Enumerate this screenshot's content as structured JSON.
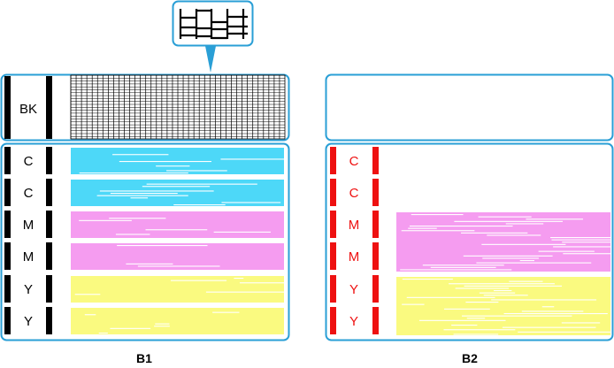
{
  "colors": {
    "border": "#2a9fd6",
    "cyan": "#4dd8f8",
    "magenta": "#f59cf0",
    "yellow": "#fafa80",
    "black": "#000000",
    "red": "#ee1111"
  },
  "b1": {
    "caption": "B1",
    "top_label": "BK",
    "rows": [
      "C",
      "C",
      "M",
      "M",
      "Y",
      "Y"
    ]
  },
  "b2": {
    "caption": "B2",
    "rows": [
      "C",
      "C",
      "M",
      "M",
      "Y",
      "Y"
    ]
  },
  "callout": {
    "icon": "magnified-grid-detail"
  }
}
